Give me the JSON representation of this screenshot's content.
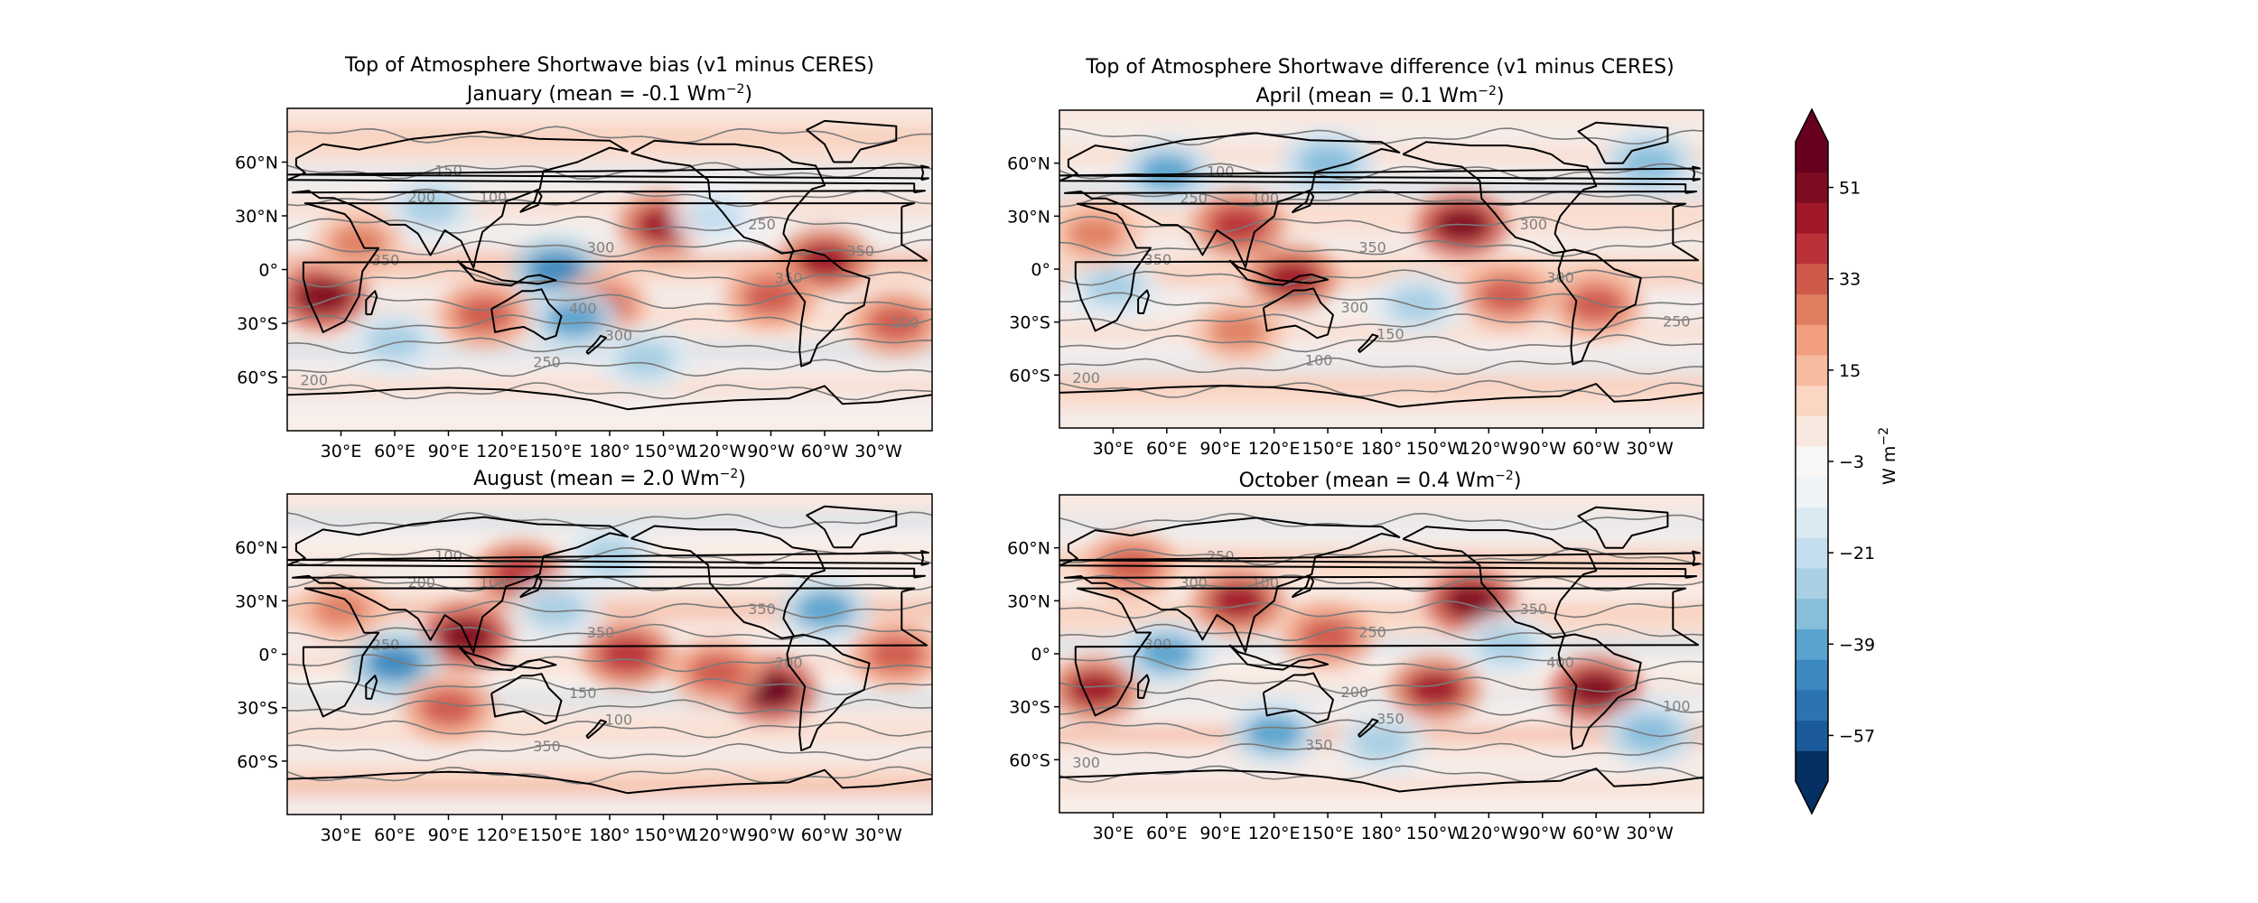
{
  "chart_data": [
    {
      "type": "heatmap",
      "title": "Top of Atmosphere Shortwave bias (v1 minus CERES)",
      "subtitle": "January (mean = -0.1 Wm",
      "subtitle_exp": "−2",
      "subtitle_end": ")",
      "xtick_labels": [
        "30°E",
        "60°E",
        "90°E",
        "120°E",
        "150°E",
        "180°",
        "150°W",
        "120°W",
        "90°W",
        "60°W",
        "30°W"
      ],
      "ytick_labels": [
        "60°N",
        "30°N",
        "0°",
        "30°S",
        "60°S"
      ],
      "contour_labels": [
        "100",
        "150",
        "200",
        "250",
        "300",
        "350",
        "350",
        "400",
        "300",
        "250",
        "200",
        "100",
        "350"
      ],
      "anomaly_blobs": [
        {
          "lon": 150,
          "lat": 0,
          "v": -45
        },
        {
          "lon": 210,
          "lat": 25,
          "v": 45
        },
        {
          "lon": 175,
          "lat": -20,
          "v": 35
        },
        {
          "lon": 160,
          "lat": -28,
          "v": -40
        },
        {
          "lon": 20,
          "lat": -15,
          "v": 50
        },
        {
          "lon": 300,
          "lat": 5,
          "v": 45
        },
        {
          "lon": 270,
          "lat": -15,
          "v": 35
        },
        {
          "lon": 60,
          "lat": -40,
          "v": -30
        },
        {
          "lon": 200,
          "lat": -50,
          "v": -25
        },
        {
          "lon": 80,
          "lat": 35,
          "v": -30
        },
        {
          "lon": 110,
          "lat": -25,
          "v": 35
        },
        {
          "lon": 340,
          "lat": -30,
          "v": 30
        },
        {
          "lon": 240,
          "lat": 30,
          "v": -20
        },
        {
          "lon": 40,
          "lat": 15,
          "v": 25
        }
      ]
    },
    {
      "type": "heatmap",
      "title": "Top of Atmosphere Shortwave difference (v1 minus CERES)",
      "subtitle": "April (mean = 0.1 Wm",
      "subtitle_exp": "−2",
      "subtitle_end": ")",
      "xtick_labels": [
        "30°E",
        "60°E",
        "90°E",
        "120°E",
        "150°E",
        "180°",
        "150°W",
        "120°W",
        "90°W",
        "60°W",
        "30°W"
      ],
      "ytick_labels": [
        "60°N",
        "30°N",
        "0°",
        "30°S",
        "60°S"
      ],
      "contour_labels": [
        "100",
        "100",
        "250",
        "300",
        "350",
        "350",
        "300",
        "300",
        "150",
        "100",
        "200",
        "250"
      ],
      "anomaly_blobs": [
        {
          "lon": 225,
          "lat": 25,
          "v": 50
        },
        {
          "lon": 100,
          "lat": 25,
          "v": 40
        },
        {
          "lon": 60,
          "lat": 55,
          "v": -40
        },
        {
          "lon": 150,
          "lat": 60,
          "v": -35
        },
        {
          "lon": 330,
          "lat": 60,
          "v": -35
        },
        {
          "lon": 130,
          "lat": -5,
          "v": 45
        },
        {
          "lon": 300,
          "lat": -20,
          "v": 30
        },
        {
          "lon": 200,
          "lat": -20,
          "v": -25
        },
        {
          "lon": 30,
          "lat": -10,
          "v": -30
        },
        {
          "lon": 250,
          "lat": -15,
          "v": 30
        },
        {
          "lon": 20,
          "lat": 20,
          "v": 25
        },
        {
          "lon": 100,
          "lat": -35,
          "v": 25
        }
      ]
    },
    {
      "type": "heatmap",
      "title": "",
      "subtitle": "August (mean = 2.0 Wm",
      "subtitle_exp": "−2",
      "subtitle_end": ")",
      "xtick_labels": [
        "30°E",
        "60°E",
        "90°E",
        "120°E",
        "150°E",
        "180°",
        "150°W",
        "120°W",
        "90°W",
        "60°W",
        "30°W"
      ],
      "ytick_labels": [
        "60°N",
        "30°N",
        "0°",
        "30°S",
        "60°S"
      ],
      "contour_labels": [
        "100",
        "100",
        "200",
        "350",
        "350",
        "250",
        "200",
        "150",
        "100",
        "350"
      ],
      "anomaly_blobs": [
        {
          "lon": 100,
          "lat": 10,
          "v": 50
        },
        {
          "lon": 60,
          "lat": -5,
          "v": -45
        },
        {
          "lon": 270,
          "lat": -20,
          "v": 55
        },
        {
          "lon": 300,
          "lat": 25,
          "v": -40
        },
        {
          "lon": 130,
          "lat": 45,
          "v": 40
        },
        {
          "lon": 180,
          "lat": 55,
          "v": -25
        },
        {
          "lon": 240,
          "lat": -10,
          "v": 35
        },
        {
          "lon": 190,
          "lat": 0,
          "v": 40
        },
        {
          "lon": 30,
          "lat": 25,
          "v": 25
        },
        {
          "lon": 150,
          "lat": 25,
          "v": -30
        },
        {
          "lon": 90,
          "lat": -30,
          "v": 30
        },
        {
          "lon": 340,
          "lat": 0,
          "v": 30
        }
      ]
    },
    {
      "type": "heatmap",
      "title": "",
      "subtitle": "October (mean = 0.4 Wm",
      "subtitle_exp": "−2",
      "subtitle_end": ")",
      "xtick_labels": [
        "30°E",
        "60°E",
        "90°E",
        "120°E",
        "150°E",
        "180°",
        "150°W",
        "120°W",
        "90°W",
        "60°W",
        "30°W"
      ],
      "ytick_labels": [
        "60°N",
        "30°N",
        "0°",
        "30°S",
        "60°S"
      ],
      "contour_labels": [
        "100",
        "250",
        "300",
        "350",
        "250",
        "300",
        "400",
        "200",
        "350",
        "350",
        "300",
        "100"
      ],
      "anomaly_blobs": [
        {
          "lon": 230,
          "lat": 30,
          "v": 50
        },
        {
          "lon": 100,
          "lat": 30,
          "v": 45
        },
        {
          "lon": 210,
          "lat": -20,
          "v": 45
        },
        {
          "lon": 300,
          "lat": -20,
          "v": 50
        },
        {
          "lon": 20,
          "lat": -20,
          "v": 45
        },
        {
          "lon": 60,
          "lat": 0,
          "v": -40
        },
        {
          "lon": 120,
          "lat": -45,
          "v": -40
        },
        {
          "lon": 330,
          "lat": -45,
          "v": -35
        },
        {
          "lon": 250,
          "lat": 5,
          "v": -25
        },
        {
          "lon": 150,
          "lat": 10,
          "v": 35
        },
        {
          "lon": 40,
          "lat": 50,
          "v": 30
        },
        {
          "lon": 180,
          "lat": -50,
          "v": -30
        }
      ]
    }
  ],
  "colorbar": {
    "ticks": [
      51,
      33,
      15,
      -3,
      -21,
      -39,
      -57
    ],
    "tick_labels": [
      "51",
      "33",
      "15",
      "−3",
      "−21",
      "−39",
      "−57"
    ],
    "label": "W m",
    "label_exp": "−2",
    "levels_min": -66,
    "levels_max": 60,
    "levels_step": 6,
    "colors": [
      "#053061",
      "#1b5a9b",
      "#2b73b1",
      "#3b89c0",
      "#5aa3ce",
      "#87bedc",
      "#a8cfe4",
      "#c4def0",
      "#dbe9f2",
      "#eef3f7",
      "#f7f7f7",
      "#f9e8df",
      "#fbd6c2",
      "#f7bba0",
      "#f19f80",
      "#e07e62",
      "#cf5a4c",
      "#bb3139",
      "#a01829",
      "#7f0d22",
      "#67001f"
    ]
  },
  "contour_level_values": [
    100,
    150,
    200,
    250,
    300,
    350,
    400
  ]
}
